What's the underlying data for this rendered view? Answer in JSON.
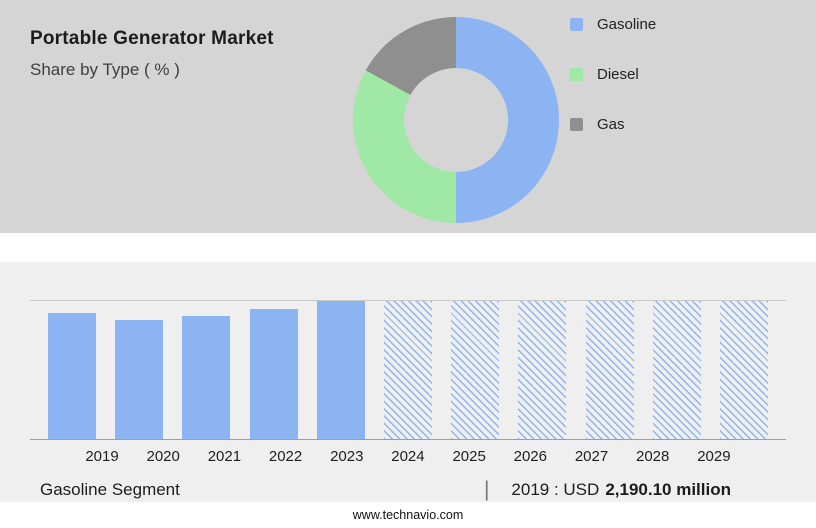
{
  "header": {
    "title": "Portable Generator Market",
    "subtitle": "Share by Type ( % )"
  },
  "chart_data": [
    {
      "type": "pie",
      "donut": true,
      "title": "Share by Type ( % )",
      "legend_position": "right",
      "slices": [
        {
          "label": "Gasoline",
          "value": 50,
          "color": "#8db4f2"
        },
        {
          "label": "Diesel",
          "value": 33,
          "color": "#9fe8a5"
        },
        {
          "label": "Gas",
          "value": 17,
          "color": "#8f8f8f"
        }
      ]
    },
    {
      "type": "bar",
      "categories": [
        "2019",
        "2020",
        "2021",
        "2022",
        "2023",
        "2024",
        "2025",
        "2026",
        "2027",
        "2028",
        "2029"
      ],
      "values": [
        91,
        86,
        89,
        94,
        100,
        100,
        100,
        100,
        100,
        100,
        100
      ],
      "hatched": [
        "2024",
        "2025",
        "2026",
        "2027",
        "2028",
        "2029"
      ],
      "bar_color": "#8db4f2",
      "ylim": [
        0,
        100
      ],
      "grid": "top and bottom rule lines only",
      "xlabel": "",
      "ylabel": ""
    }
  ],
  "summary": {
    "segment_label": "Gasoline Segment",
    "divider": "|",
    "value_prefix": "2019 : USD",
    "value_bold": "2,190.10 million"
  },
  "footer": {
    "website": "www.technavio.com"
  }
}
